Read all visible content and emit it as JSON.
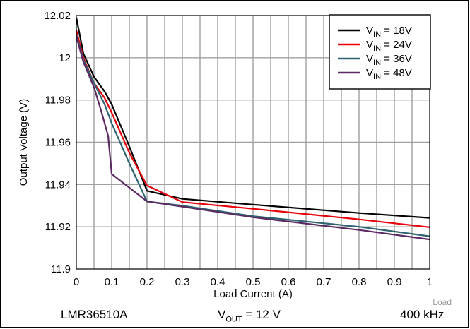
{
  "chart_data": {
    "type": "line",
    "xlabel": "Load Current (A)",
    "ylabel": "Output Voltage (V)",
    "xlim": [
      0,
      1
    ],
    "ylim": [
      11.9,
      12.02
    ],
    "xticks": [
      "0",
      "0.1",
      "0.2",
      "0.3",
      "0.4",
      "0.5",
      "0.6",
      "0.7",
      "0.8",
      "0.9",
      "1"
    ],
    "yticks": [
      "11.9",
      "11.92",
      "11.94",
      "11.96",
      "11.98",
      "12",
      "12.02"
    ],
    "grid": true,
    "legend_position": "top-right",
    "series": [
      {
        "name_main": "V",
        "name_sub": "IN",
        "name_rest": " = 18V",
        "color": "#000000",
        "x": [
          0,
          0.02,
          0.05,
          0.08,
          0.1,
          0.15,
          0.2,
          0.3,
          0.5,
          0.8,
          1.0
        ],
        "y": [
          12.019,
          12.002,
          11.991,
          11.984,
          11.978,
          11.958,
          11.937,
          11.9332,
          11.9305,
          11.9265,
          11.9242
        ]
      },
      {
        "name_main": "V",
        "name_sub": "IN",
        "name_rest": " = 24V",
        "color": "#e8000b",
        "x": [
          0,
          0.02,
          0.05,
          0.08,
          0.1,
          0.15,
          0.2,
          0.3,
          0.5,
          0.8,
          1.0
        ],
        "y": [
          12.013,
          12.0,
          11.988,
          11.981,
          11.974,
          11.955,
          11.9395,
          11.9317,
          11.9285,
          11.9235,
          11.9198
        ]
      },
      {
        "name_main": "V",
        "name_sub": "IN",
        "name_rest": " = 36V",
        "color": "#2e6470",
        "x": [
          0,
          0.02,
          0.05,
          0.08,
          0.1,
          0.15,
          0.2,
          0.3,
          0.5,
          0.8,
          1.0
        ],
        "y": [
          12.011,
          11.999,
          11.988,
          11.978,
          11.969,
          11.95,
          11.932,
          11.93,
          11.925,
          11.92,
          11.9155
        ]
      },
      {
        "name_main": "V",
        "name_sub": "IN",
        "name_rest": " = 48V",
        "color": "#5b2a63",
        "x": [
          0,
          0.02,
          0.05,
          0.07,
          0.09,
          0.1,
          0.2,
          0.3,
          0.5,
          0.8,
          1.0
        ],
        "y": [
          12.01,
          11.998,
          11.986,
          11.975,
          11.963,
          11.945,
          11.932,
          11.9295,
          11.9245,
          11.9185,
          11.914
        ]
      }
    ]
  },
  "footer": {
    "device": "LMR36510A",
    "vout_main": "V",
    "vout_sub": "OUT",
    "vout_rest": " = 12 V",
    "frequency": "400 kHz"
  },
  "watermark": "Load"
}
